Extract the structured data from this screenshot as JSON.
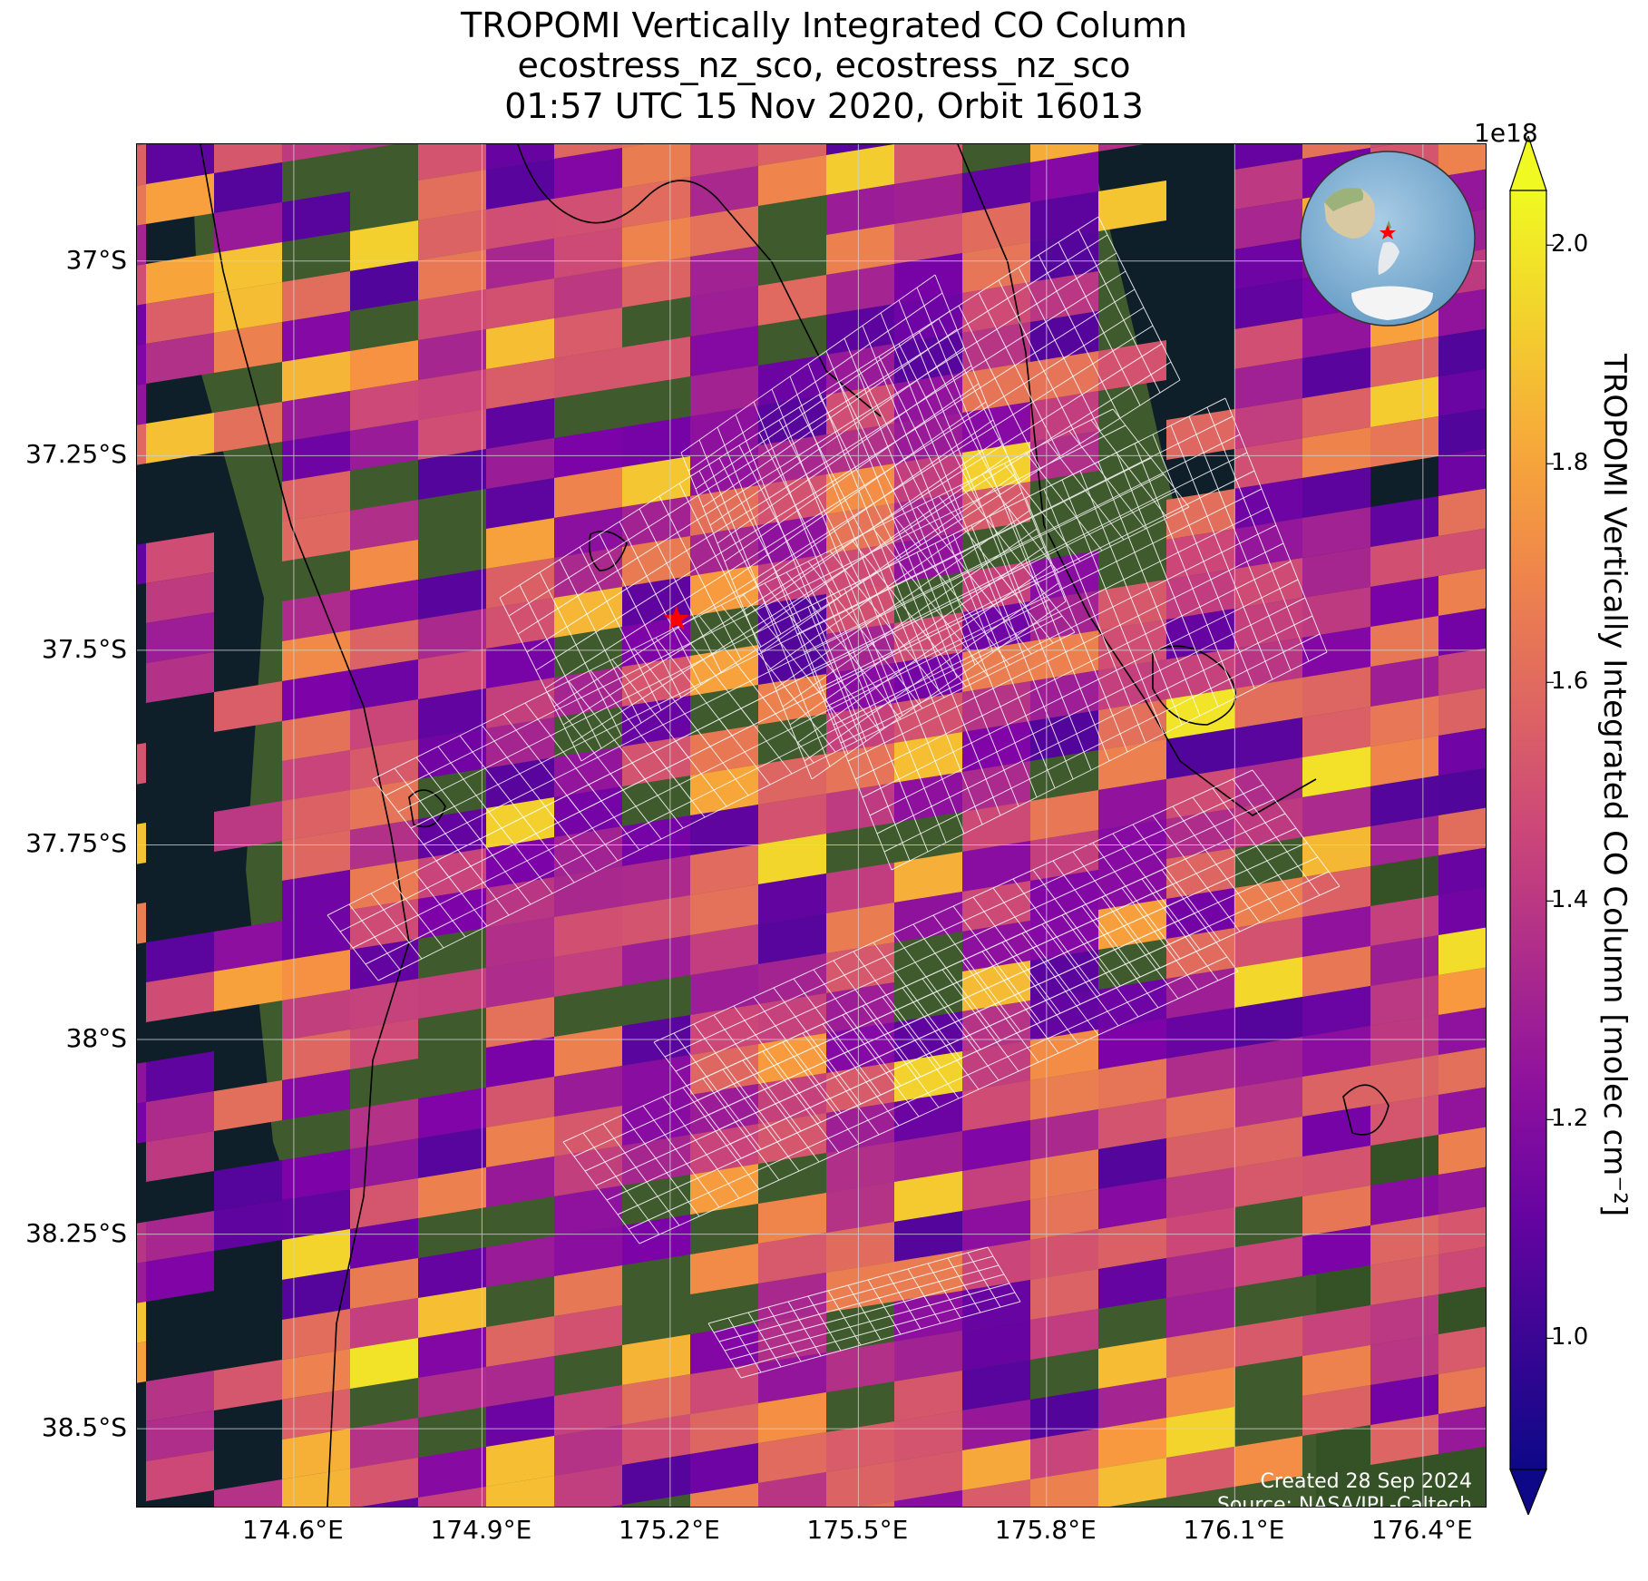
{
  "title": {
    "line1": "TROPOMI Vertically Integrated CO Column",
    "line2": "ecostress_nz_sco, ecostress_nz_sco",
    "line3": "01:57 UTC 15 Nov 2020, Orbit 16013"
  },
  "map": {
    "lon_range": [
      174.35,
      176.5
    ],
    "lat_range": [
      -38.6,
      -36.85
    ],
    "lat_ticks": [
      "37°S",
      "37.25°S",
      "37.5°S",
      "37.75°S",
      "38°S",
      "38.25°S",
      "38.5°S"
    ],
    "lat_tick_values": [
      -37.0,
      -37.25,
      -37.5,
      -37.75,
      -38.0,
      -38.25,
      -38.5
    ],
    "lon_ticks": [
      "174.6°E",
      "174.9°E",
      "175.2°E",
      "175.5°E",
      "175.8°E",
      "176.1°E",
      "176.4°E"
    ],
    "lon_tick_values": [
      174.6,
      174.9,
      175.2,
      175.5,
      175.8,
      176.1,
      176.4
    ],
    "grid": true,
    "marker": {
      "lon": 175.21,
      "lat": -37.46,
      "symbol": "star",
      "color": "#ff0000"
    },
    "inset": "globe-locator-top-right"
  },
  "colorbar": {
    "exponent_label": "1e18",
    "label": "TROPOMI Vertically Integrated CO Column [molec cm⁻²]",
    "colormap": "plasma",
    "range": [
      0.88,
      2.05
    ],
    "ticks": [
      "1.0",
      "1.2",
      "1.4",
      "1.6",
      "1.8",
      "2.0"
    ],
    "tick_values": [
      1.0,
      1.2,
      1.4,
      1.6,
      1.8,
      2.0
    ]
  },
  "footer": {
    "created": "Created 28 Sep 2024",
    "source": "Source: NASA/JPL-Caltech"
  }
}
